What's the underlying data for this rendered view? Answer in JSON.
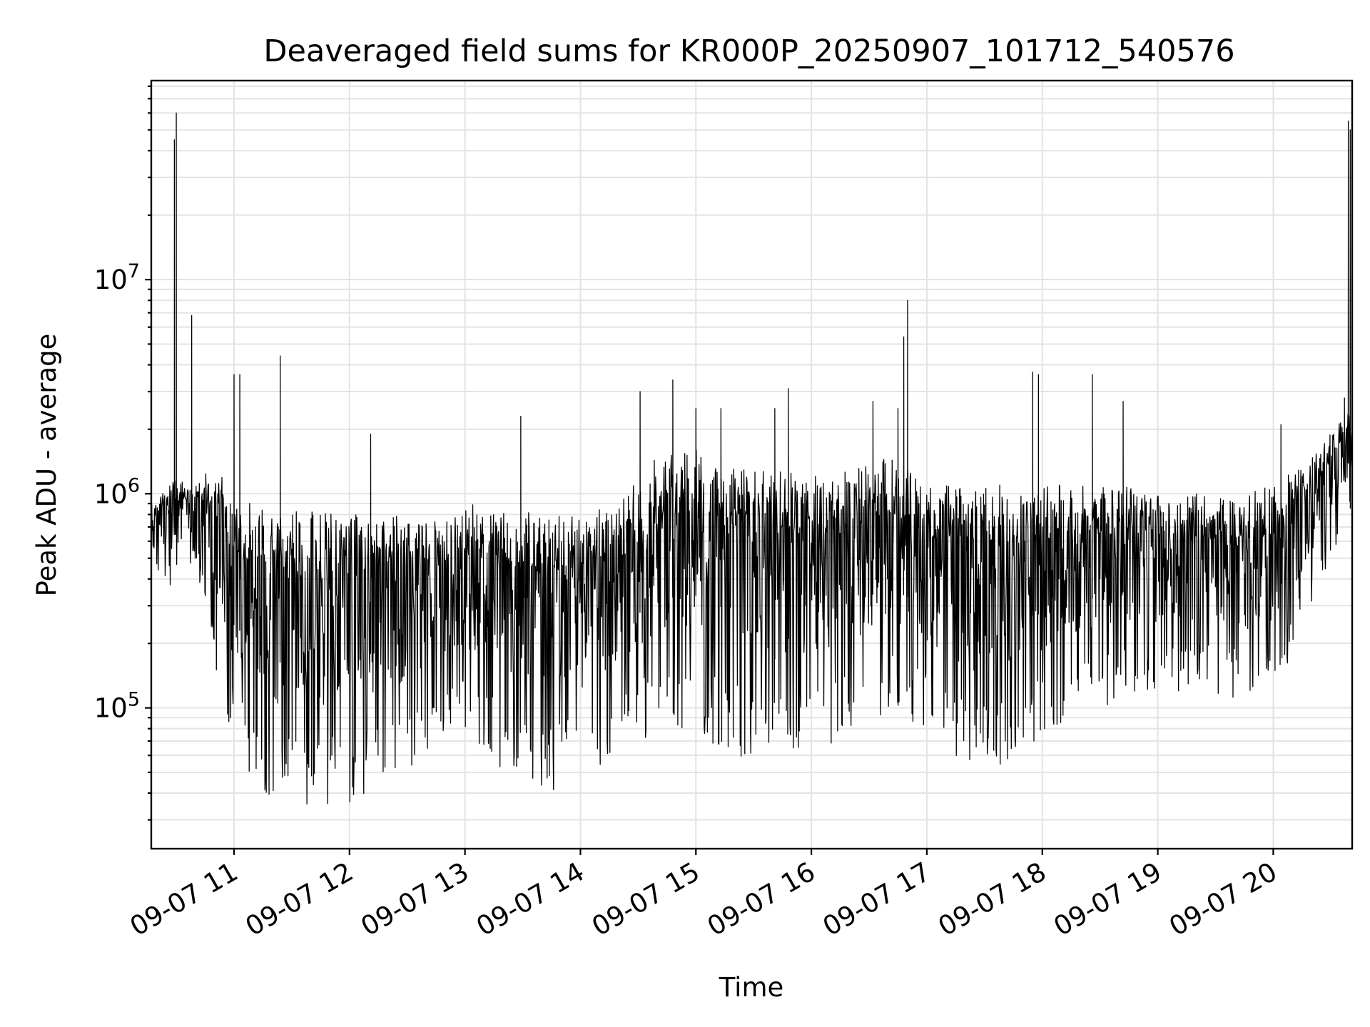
{
  "chart_data": {
    "type": "line",
    "title": "Deaveraged field sums for KR000P_20250907_101712_540576",
    "xlabel": "Time",
    "ylabel": "Peak ADU - average",
    "yscale": "log",
    "grid": true,
    "line_color": "#000000",
    "x_ticks": [
      "09-07 11",
      "09-07 12",
      "09-07 13",
      "09-07 14",
      "09-07 15",
      "09-07 16",
      "09-07 17",
      "09-07 18",
      "09-07 19",
      "09-07 20"
    ],
    "y_ticks": [
      {
        "value": 100000,
        "base": "10",
        "exp": "5"
      },
      {
        "value": 1000000,
        "base": "10",
        "exp": "6"
      },
      {
        "value": 10000000,
        "base": "10",
        "exp": "7"
      }
    ],
    "xlim": [
      "2025-09-07 10:17",
      "2025-09-07 20:41"
    ],
    "ylim": [
      22000,
      85000000
    ],
    "envelope": [
      {
        "t": "2025-09-07 10:17",
        "low": 420000,
        "high": 900000
      },
      {
        "t": "2025-09-07 10:30",
        "low": 350000,
        "high": 1200000
      },
      {
        "t": "2025-09-07 10:40",
        "low": 500000,
        "high": 1100000
      },
      {
        "t": "2025-09-07 10:50",
        "low": 150000,
        "high": 1500000
      },
      {
        "t": "2025-09-07 11:00",
        "low": 60000,
        "high": 1000000
      },
      {
        "t": "2025-09-07 11:20",
        "low": 33000,
        "high": 800000
      },
      {
        "t": "2025-09-07 11:40",
        "low": 33000,
        "high": 850000
      },
      {
        "t": "2025-09-07 12:00",
        "low": 35000,
        "high": 800000
      },
      {
        "t": "2025-09-07 12:20",
        "low": 45000,
        "high": 800000
      },
      {
        "t": "2025-09-07 12:40",
        "low": 55000,
        "high": 750000
      },
      {
        "t": "2025-09-07 13:00",
        "low": 80000,
        "high": 900000
      },
      {
        "t": "2025-09-07 13:20",
        "low": 50000,
        "high": 850000
      },
      {
        "t": "2025-09-07 13:40",
        "low": 40000,
        "high": 800000
      },
      {
        "t": "2025-09-07 14:00",
        "low": 45000,
        "high": 800000
      },
      {
        "t": "2025-09-07 14:20",
        "low": 60000,
        "high": 900000
      },
      {
        "t": "2025-09-07 14:40",
        "low": 70000,
        "high": 1500000
      },
      {
        "t": "2025-09-07 15:00",
        "low": 70000,
        "high": 1600000
      },
      {
        "t": "2025-09-07 15:20",
        "low": 60000,
        "high": 1300000
      },
      {
        "t": "2025-09-07 15:40",
        "low": 55000,
        "high": 1300000
      },
      {
        "t": "2025-09-07 16:00",
        "low": 60000,
        "high": 1200000
      },
      {
        "t": "2025-09-07 16:20",
        "low": 70000,
        "high": 1300000
      },
      {
        "t": "2025-09-07 16:40",
        "low": 90000,
        "high": 1500000
      },
      {
        "t": "2025-09-07 17:00",
        "low": 80000,
        "high": 1100000
      },
      {
        "t": "2025-09-07 17:20",
        "low": 50000,
        "high": 1100000
      },
      {
        "t": "2025-09-07 17:40",
        "low": 55000,
        "high": 1100000
      },
      {
        "t": "2025-09-07 18:00",
        "low": 70000,
        "high": 1100000
      },
      {
        "t": "2025-09-07 18:20",
        "low": 90000,
        "high": 1100000
      },
      {
        "t": "2025-09-07 18:40",
        "low": 110000,
        "high": 1100000
      },
      {
        "t": "2025-09-07 19:00",
        "low": 120000,
        "high": 1000000
      },
      {
        "t": "2025-09-07 19:20",
        "low": 120000,
        "high": 1000000
      },
      {
        "t": "2025-09-07 19:40",
        "low": 110000,
        "high": 950000
      },
      {
        "t": "2025-09-07 20:00",
        "low": 100000,
        "high": 1100000
      },
      {
        "t": "2025-09-07 20:20",
        "low": 300000,
        "high": 1500000
      },
      {
        "t": "2025-09-07 20:41",
        "low": 900000,
        "high": 2500000
      }
    ],
    "spikes": [
      {
        "t": "2025-09-07 10:29",
        "value": 45000000
      },
      {
        "t": "2025-09-07 10:30",
        "value": 60000000
      },
      {
        "t": "2025-09-07 10:38",
        "value": 6800000
      },
      {
        "t": "2025-09-07 11:00",
        "value": 3600000
      },
      {
        "t": "2025-09-07 11:03",
        "value": 3600000
      },
      {
        "t": "2025-09-07 11:24",
        "value": 4400000
      },
      {
        "t": "2025-09-07 12:11",
        "value": 1900000
      },
      {
        "t": "2025-09-07 13:29",
        "value": 2300000
      },
      {
        "t": "2025-09-07 14:31",
        "value": 3000000
      },
      {
        "t": "2025-09-07 14:48",
        "value": 3400000
      },
      {
        "t": "2025-09-07 15:00",
        "value": 2500000
      },
      {
        "t": "2025-09-07 15:13",
        "value": 2500000
      },
      {
        "t": "2025-09-07 15:41",
        "value": 2500000
      },
      {
        "t": "2025-09-07 15:48",
        "value": 3100000
      },
      {
        "t": "2025-09-07 16:32",
        "value": 2700000
      },
      {
        "t": "2025-09-07 16:45",
        "value": 2500000
      },
      {
        "t": "2025-09-07 16:48",
        "value": 5400000
      },
      {
        "t": "2025-09-07 16:50",
        "value": 8000000
      },
      {
        "t": "2025-09-07 17:55",
        "value": 3700000
      },
      {
        "t": "2025-09-07 17:58",
        "value": 3600000
      },
      {
        "t": "2025-09-07 18:26",
        "value": 3600000
      },
      {
        "t": "2025-09-07 18:42",
        "value": 2700000
      },
      {
        "t": "2025-09-07 20:04",
        "value": 2100000
      },
      {
        "t": "2025-09-07 20:37",
        "value": 2800000
      },
      {
        "t": "2025-09-07 20:39",
        "value": 55000000
      },
      {
        "t": "2025-09-07 20:40",
        "value": 50000000
      }
    ]
  }
}
